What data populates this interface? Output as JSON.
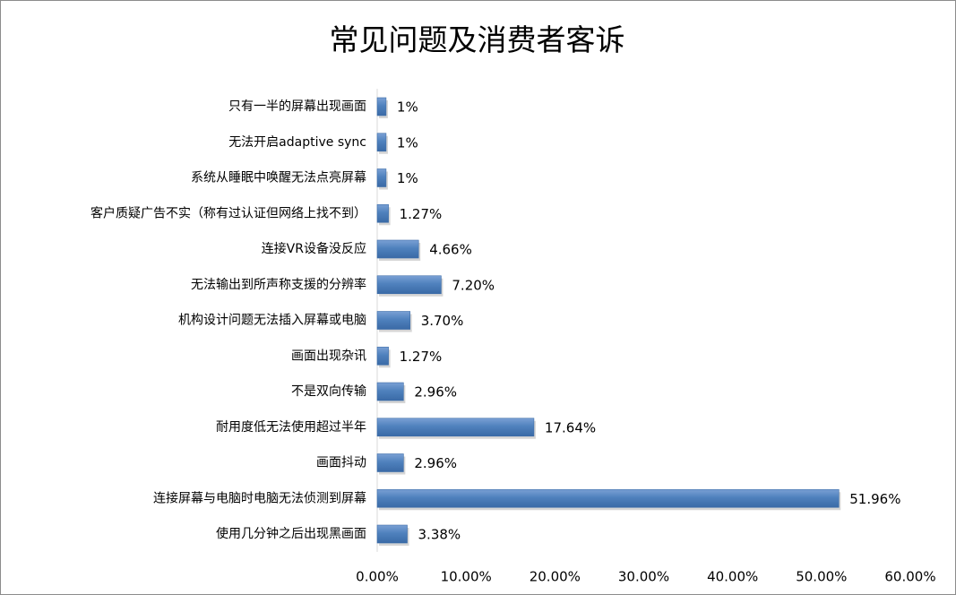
{
  "chart_data": {
    "type": "bar",
    "orientation": "horizontal",
    "title": "常见问题及消费者客诉",
    "categories": [
      "只有一半的屏幕出现画面",
      "无法开启adaptive sync",
      "系统从睡眠中唤醒无法点亮屏幕",
      "客户质疑广告不实（称有过认证但网络上找不到）",
      "连接VR设备没反应",
      "无法输出到所声称支援的分辨率",
      "机构设计问题无法插入屏幕或电脑",
      "画面出现杂讯",
      "不是双向传输",
      "耐用度低无法使用超过半年",
      "画面抖动",
      "连接屏幕与电脑时电脑无法侦测到屏幕",
      "使用几分钟之后出现黑画面"
    ],
    "values": [
      1,
      1,
      1,
      1.27,
      4.66,
      7.2,
      3.7,
      1.27,
      2.96,
      17.64,
      2.96,
      51.96,
      3.38
    ],
    "value_labels": [
      "1%",
      "1%",
      "1%",
      "1.27%",
      "4.66%",
      "7.20%",
      "3.70%",
      "1.27%",
      "2.96%",
      "17.64%",
      "2.96%",
      "51.96%",
      "3.38%"
    ],
    "xlim": [
      0,
      60
    ],
    "x_ticks": [
      "0.00%",
      "10.00%",
      "20.00%",
      "30.00%",
      "40.00%",
      "50.00%",
      "60.00%"
    ],
    "grid": false,
    "legend": "none",
    "bar_color": "#4f81bd"
  }
}
